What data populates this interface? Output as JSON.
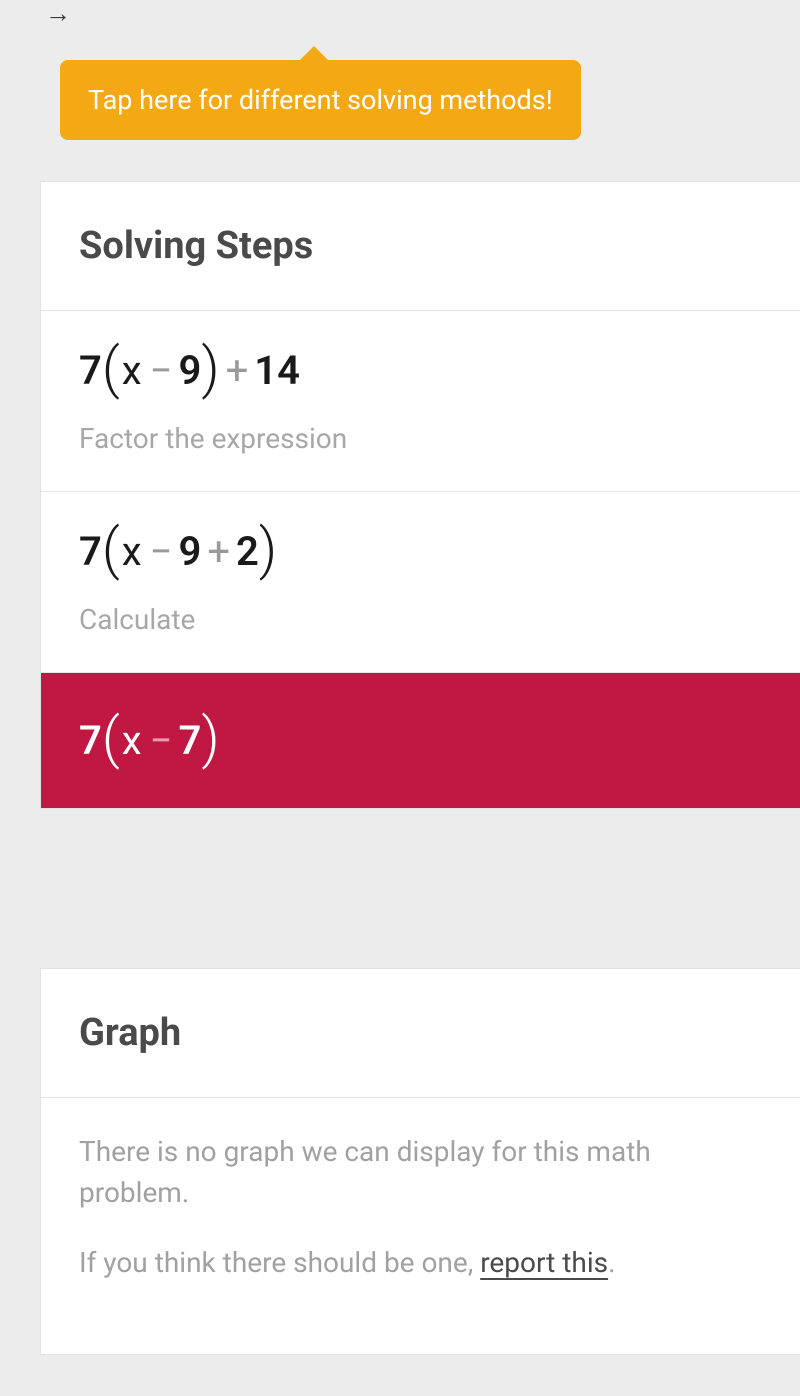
{
  "tooltip": {
    "text": "Tap here for different solving methods!"
  },
  "steps_card": {
    "title": "Solving Steps",
    "step1": {
      "coef": "7",
      "lp": "(",
      "var": "x",
      "op1": "−",
      "v1": "9",
      "rp": ")",
      "op2": "+",
      "v2": "14",
      "hint": "Factor the expression"
    },
    "step2": {
      "coef": "7",
      "lp": "(",
      "var": "x",
      "op1": "−",
      "v1": "9",
      "op2": "+",
      "v2": "2",
      "rp": ")",
      "hint": "Calculate"
    },
    "answer": {
      "coef": "7",
      "lp": "(",
      "var": "x",
      "op1": "−",
      "v1": "7",
      "rp": ")"
    }
  },
  "graph_card": {
    "title": "Graph",
    "line1": "There is no graph we can display for this math problem.",
    "line2_pre": "If you think there should be one, ",
    "report": "report this",
    "line2_post": "."
  },
  "colors": {
    "bg": "#ececec",
    "tooltip_bg": "#f4a813",
    "answer_bg": "#c01842",
    "title_color": "#4a4a4a",
    "hint_color": "#a7a7a7"
  }
}
